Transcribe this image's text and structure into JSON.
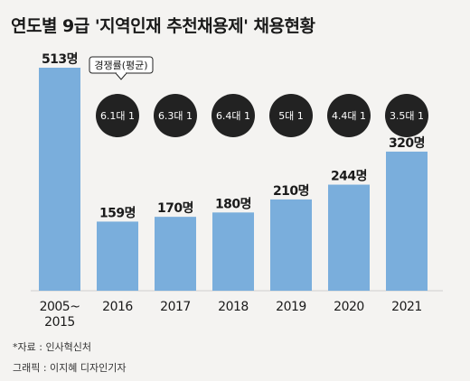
{
  "title": "연도별 9급 '지역인재 추천채용제' 채용현황",
  "ratio_legend": "경쟁률(평균)",
  "source": "*자료 : 인사혁신처",
  "credit": "그래픽 : 이지혜 디자인기자",
  "colors": {
    "bar": "#7aaedc",
    "bubble": "#222222",
    "background": "#f4f3f1"
  },
  "chart_data": {
    "type": "bar",
    "title": "연도별 9급 '지역인재 추천채용제' 채용현황",
    "categories": [
      "2005~2015",
      "2016",
      "2017",
      "2018",
      "2019",
      "2020",
      "2021"
    ],
    "category_lines": [
      [
        "2005~",
        "2015"
      ],
      [
        "2016"
      ],
      [
        "2017"
      ],
      [
        "2018"
      ],
      [
        "2019"
      ],
      [
        "2020"
      ],
      [
        "2021"
      ]
    ],
    "values": [
      513,
      159,
      170,
      180,
      210,
      244,
      320
    ],
    "value_labels": [
      "513명",
      "159명",
      "170명",
      "180명",
      "210명",
      "244명",
      "320명"
    ],
    "competition_ratio_label": "경쟁률(평균)",
    "competition_ratios": [
      "",
      "6.1대 1",
      "6.3대 1",
      "6.4대 1",
      "5대 1",
      "4.4대 1",
      "3.5대 1"
    ],
    "ylim": [
      0,
      513
    ],
    "grid": false,
    "xlabel": "",
    "ylabel": ""
  }
}
